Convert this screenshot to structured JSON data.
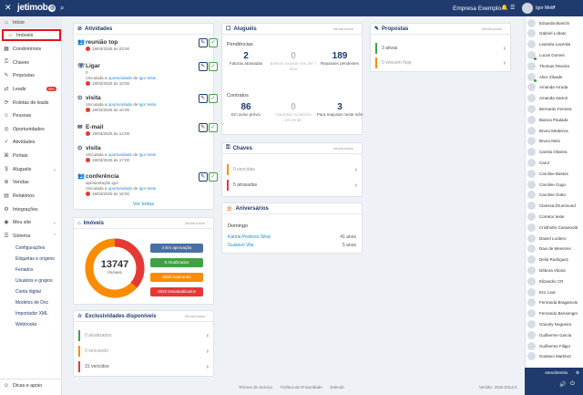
{
  "topbar": {
    "close": "✕",
    "logo": "jetimob",
    "logo_badge": "◎",
    "search_icon": "⌕",
    "company": "Empresa Exemplo",
    "company_caret": "▾",
    "notif_icon": "🔔",
    "apps_icon": "☰",
    "user": "Igor Melo",
    "user_caret": "▾"
  },
  "sidebar": {
    "items": [
      {
        "label": "Início",
        "icon": "⌂"
      },
      {
        "label": "Imóveis",
        "icon": "⌂"
      },
      {
        "label": "Condomínios",
        "icon": "▦"
      },
      {
        "label": "Chaves",
        "icon": "⚿"
      },
      {
        "label": "Propostas",
        "icon": "✎"
      },
      {
        "label": "Leads",
        "icon": "⇄",
        "badge": "99+"
      },
      {
        "label": "Roletas de leads",
        "icon": "⟳"
      },
      {
        "label": "Pessoas",
        "icon": "☺"
      },
      {
        "label": "Oportunidades",
        "icon": "◎"
      },
      {
        "label": "Atividades",
        "icon": "✓"
      },
      {
        "label": "Portais",
        "icon": "⌘"
      },
      {
        "label": "Aluguéis",
        "icon": "$",
        "chev": "⌄"
      },
      {
        "label": "Vendas",
        "icon": "⊕"
      },
      {
        "label": "Relatórios",
        "icon": "▤"
      },
      {
        "label": "Integrações",
        "icon": "⚙"
      },
      {
        "label": "Meu site",
        "icon": "◉",
        "chev": "⌄"
      },
      {
        "label": "Sistema",
        "icon": "☰",
        "chev": "⌃"
      }
    ],
    "subitems": [
      "Configurações",
      "Etiquetas e origens",
      "Feriados",
      "Usuários e grupos",
      "Conta digital",
      "Modelos de Doc",
      "Importador XML",
      "Webhooks"
    ],
    "footer": {
      "label": "Dicas e apoio",
      "icon": "☺"
    }
  },
  "atividades": {
    "title": "Atividades",
    "icon": "⊘",
    "more": "⋮",
    "edit_icon": "✎",
    "ok_icon": "✓",
    "items": [
      {
        "icon": "👥",
        "title": "reunião top",
        "link": "",
        "date": "19/03/2025 às 03:00"
      },
      {
        "icon": "☏",
        "title": "Ligar",
        "link_pre": "0",
        "link_mid": "Vinculada a",
        "link_a": "oportunidade",
        "link_de": "de",
        "link_b": "Igor teste",
        "date": "19/03/2025 às 10:00"
      },
      {
        "icon": "⊙",
        "title": "visita",
        "link_mid": "Vinculada a",
        "link_a": "oportunidade",
        "link_de": "de",
        "link_b": "Igor teste",
        "date": "19/03/2025 às 10:00"
      },
      {
        "icon": "✉",
        "title": "E-mail",
        "link": "",
        "date": "19/03/2025 às 14:00"
      },
      {
        "icon": "⊙",
        "title": "visita",
        "link_mid": "Vinculada a",
        "link_a": "oportunidade",
        "link_de": "de",
        "link_b": "Igor teste",
        "date": "19/03/2025 às 17:00"
      },
      {
        "icon": "👥",
        "title": "conferência",
        "link_pre": "apresentação igor",
        "link_mid": "Vinculada a",
        "link_a": "oportunidade",
        "link_de": "de",
        "link_b": "Igor teste",
        "date": "19/03/2025 às 19:00"
      }
    ],
    "see_all": "Ver todas"
  },
  "imoveis": {
    "title": "Imóveis",
    "icon": "⌂",
    "more": "Venda todos ⋮",
    "total": "13747",
    "total_label": "Imóveis",
    "pills": [
      {
        "label": "4 Em aprovação",
        "color": "#4a6fa5"
      },
      {
        "label": "6 Atualizados",
        "color": "#43a047"
      },
      {
        "label": "8823 Expirando",
        "color": "#fb8c00"
      },
      {
        "label": "4920 Desatualizados",
        "color": "#e53935"
      }
    ]
  },
  "exclusividades": {
    "title": "Exclusividades disponíveis",
    "icon": "☆",
    "more": "Venda todos ⋮",
    "rows": [
      {
        "label": "0 atualizados",
        "color": "#43a047",
        "text_color": "#999"
      },
      {
        "label": "0 vencendo",
        "color": "#fb8c00",
        "text_color": "#999"
      },
      {
        "label": "31 vencidos",
        "color": "#e53935",
        "text_color": "#555"
      }
    ],
    "arrow": "›"
  },
  "alugueis": {
    "title": "Aluguéis",
    "icon": "☐",
    "more": "Venda todos ⋮",
    "pendencias": "Pendências",
    "stats1": [
      {
        "n": "2",
        "s": "Faturas atrasadas",
        "gray": false
      },
      {
        "n": "0",
        "s": "Boletos expiram em até 7 dias",
        "gray": true
      },
      {
        "n": "189",
        "s": "Repasses pendentes",
        "gray": false
      }
    ],
    "contratos": "Contratos",
    "stats2": [
      {
        "n": "86",
        "s": "Em aviso prévio",
        "gray": false
      },
      {
        "n": "0",
        "s": "Garantias locatícias vencendo",
        "gray": true
      },
      {
        "n": "3",
        "s": "Para reajustar neste mês",
        "gray": false
      }
    ]
  },
  "chaves": {
    "title": "Chaves",
    "icon": "⚿",
    "more": "Venda todos ⋮",
    "rows": [
      {
        "label": "0 vencidas",
        "color": "#fb8c00",
        "text_color": "#999"
      },
      {
        "label": "5 atrasadas",
        "color": "#e53935",
        "text_color": "#555"
      }
    ],
    "arrow": "›"
  },
  "aniversarios": {
    "title": "Aniversários",
    "icon": "🎂",
    "day": "Domingo",
    "rows": [
      {
        "name": "Karina Pedroso Silva",
        "age": "41 anos"
      },
      {
        "name": "Gustavo Vila",
        "age": "5 anos"
      }
    ]
  },
  "propostas": {
    "title": "Propostas",
    "icon": "✎",
    "more": "Venda todos ⋮",
    "rows": [
      {
        "label": "3 ativas",
        "color": "#43a047",
        "text_color": "#555"
      },
      {
        "label": "0 vencem hoje",
        "color": "#fb8c00",
        "text_color": "#999"
      }
    ],
    "arrow": "›"
  },
  "footer": {
    "links": [
      "Termos de Serviço",
      "Política de Privacidade",
      "Jetimob"
    ],
    "version": "Versão: 2025.0314.0"
  },
  "people": [
    "Eduarda Bianchi",
    "Gabriel Lobato",
    "Leandra Lacerda",
    "Lucas Gomes",
    "Thomas Teixeira",
    "Alice Zilvade",
    "Amanda Arruda",
    "Amanda Sartori",
    "Bernardo Ferreira",
    "Bianca Paulada",
    "Bruno Medeiros",
    "Bruno Melo",
    "Camila Oliveira",
    "Carol",
    "Caroline Bastos",
    "Caroline Gugo",
    "Caroline Gotto",
    "Clarissa Drummond",
    "Corretor teste",
    "Cristhofer Cassenotti",
    "Daniel Lordero",
    "Davi de Menezes",
    "Delia Rodriguez",
    "Débora Vitoria",
    "Elizandro CR",
    "Eric Leal",
    "Fernanda Bragamolo",
    "Fernando Bensenger",
    "Gracely Nogueira",
    "Guilherme Garcia",
    "Guilherme Filippi",
    "Gustavo Martinez"
  ],
  "online_people": [
    "Lucas Gomes",
    "Alice Zilvade"
  ],
  "rpanel_footer": {
    "label": "Atendimento",
    "gear": "⚙",
    "audio": "🔊",
    "toggle": "⏻"
  }
}
